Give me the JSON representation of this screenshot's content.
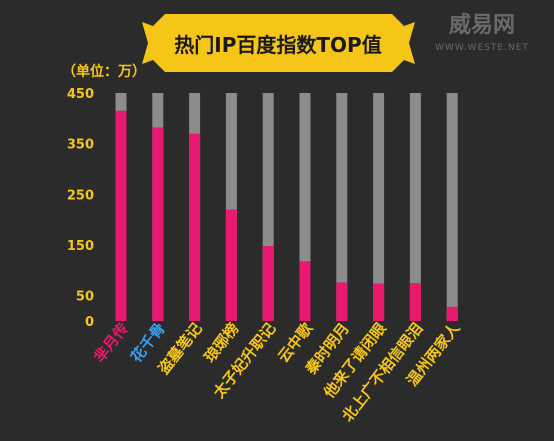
{
  "watermark": {
    "brand": "威易网",
    "url": "WWW.WESTE.NET"
  },
  "chart_data": {
    "type": "bar",
    "title": "热门IP百度指数TOP值",
    "unit_label": "（单位：万）",
    "ylim": [
      0,
      450
    ],
    "yticks": [
      0,
      50,
      150,
      250,
      350,
      450
    ],
    "grid": false,
    "stacked_background": true,
    "categories": [
      "芈月传",
      "花千骨",
      "盗墓笔记",
      "琅琊榜",
      "太子妃升职记",
      "云中歌",
      "秦时明月",
      "他来了请闭眼",
      "北上广不相信眼泪",
      "温州两家人"
    ],
    "label_colors": [
      "#e8196e",
      "#3aa0f0",
      "#f5c518",
      "#f5c518",
      "#f5c518",
      "#f5c518",
      "#f5c518",
      "#f5c518",
      "#f5c518",
      "#f5c518"
    ],
    "series": [
      {
        "values": [
          415,
          382,
          370,
          220,
          148,
          118,
          76,
          74,
          75,
          28
        ],
        "color": "#e8196e"
      }
    ],
    "background_value": 450,
    "background_color": "#8c8c8c",
    "title_bg": "#f5c518",
    "axis_color": "#f5c518"
  }
}
